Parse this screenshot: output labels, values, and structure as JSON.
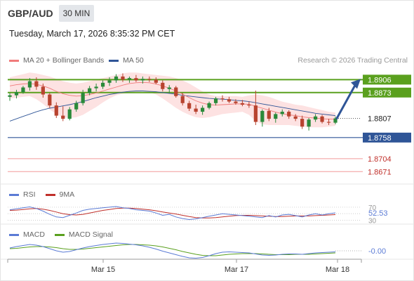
{
  "header": {
    "pair": "GBP/AUD",
    "timeframe": "30 MIN",
    "datetime": "Tuesday, March 17, 2026 8:35:32 PM CET"
  },
  "legend": {
    "ma20": "MA 20 + Bollinger Bands",
    "ma50": "MA 50",
    "credit": "Research © 2026 Trading Central"
  },
  "colors": {
    "up": "#2a8a3a",
    "down": "#b8432f",
    "bb_fill": "#fde2e2",
    "ma20": "#f07b7b",
    "ma50": "#2f5597",
    "green_level": "#5aa01e",
    "red_level": "#f29a9a",
    "blue_level": "#2f5597",
    "rsi": "#5b7bd5",
    "rsi_ma": "#c0302b",
    "macd": "#5b7bd5",
    "macd_signal": "#5aa01e"
  },
  "rsi_panel": {
    "label": "RSI",
    "ma_label": "9MA",
    "tick_70": "70",
    "tick_30": "30",
    "value": "52.53"
  },
  "macd_panel": {
    "label": "MACD",
    "signal_label": "MACD Signal",
    "value": "-0.00"
  },
  "x_axis": {
    "labels": [
      "Mar 15",
      "Mar 17",
      "Mar 18"
    ]
  },
  "chart_data": {
    "type": "candlestick",
    "y_range": [
      1.865,
      1.893
    ],
    "levels": [
      {
        "value": 1.8906,
        "label": "1.8906",
        "kind": "resistance",
        "style": "green"
      },
      {
        "value": 1.8873,
        "label": "1.8873",
        "kind": "resistance",
        "style": "green"
      },
      {
        "value": 1.8807,
        "label": "1.8807",
        "kind": "current_price",
        "style": "dotted"
      },
      {
        "value": 1.8758,
        "label": "1.8758",
        "kind": "pivot",
        "style": "blue"
      },
      {
        "value": 1.8704,
        "label": "1.8704",
        "kind": "support",
        "style": "red"
      },
      {
        "value": 1.8671,
        "label": "1.8671",
        "kind": "support",
        "style": "red"
      }
    ],
    "current_price": 1.8807,
    "forecast_arrow": {
      "from": 1.8807,
      "to": 1.8906,
      "direction": "up"
    },
    "candles": [
      [
        1.8862,
        1.8872,
        1.8852,
        1.8866
      ],
      [
        1.8866,
        1.888,
        1.8858,
        1.8874
      ],
      [
        1.8874,
        1.889,
        1.887,
        1.8886
      ],
      [
        1.8886,
        1.891,
        1.8878,
        1.8902
      ],
      [
        1.8902,
        1.8912,
        1.888,
        1.8888
      ],
      [
        1.8888,
        1.8896,
        1.886,
        1.8868
      ],
      [
        1.8868,
        1.8872,
        1.8834,
        1.884
      ],
      [
        1.884,
        1.8848,
        1.8808,
        1.8814
      ],
      [
        1.8814,
        1.8838,
        1.88,
        1.8806
      ],
      [
        1.8806,
        1.8836,
        1.8802,
        1.883
      ],
      [
        1.883,
        1.8852,
        1.8824,
        1.8846
      ],
      [
        1.8846,
        1.888,
        1.884,
        1.8872
      ],
      [
        1.8872,
        1.889,
        1.8866,
        1.8884
      ],
      [
        1.8884,
        1.8896,
        1.8876,
        1.8888
      ],
      [
        1.8888,
        1.8904,
        1.8882,
        1.8898
      ],
      [
        1.8898,
        1.8912,
        1.889,
        1.8904
      ],
      [
        1.8904,
        1.892,
        1.8898,
        1.8914
      ],
      [
        1.8914,
        1.8922,
        1.89,
        1.8906
      ],
      [
        1.8906,
        1.8914,
        1.8898,
        1.891
      ],
      [
        1.891,
        1.8918,
        1.89,
        1.8904
      ],
      [
        1.8904,
        1.8914,
        1.8896,
        1.8908
      ],
      [
        1.8908,
        1.8914,
        1.89,
        1.8906
      ],
      [
        1.8906,
        1.8912,
        1.8894,
        1.8898
      ],
      [
        1.8898,
        1.8904,
        1.8876,
        1.8882
      ],
      [
        1.8882,
        1.8892,
        1.8872,
        1.8886
      ],
      [
        1.8886,
        1.889,
        1.886,
        1.8864
      ],
      [
        1.8864,
        1.8872,
        1.884,
        1.8846
      ],
      [
        1.8846,
        1.8852,
        1.8826,
        1.8832
      ],
      [
        1.8832,
        1.8842,
        1.8818,
        1.8824
      ],
      [
        1.8824,
        1.884,
        1.8816,
        1.8834
      ],
      [
        1.8834,
        1.885,
        1.883,
        1.8846
      ],
      [
        1.8846,
        1.8862,
        1.884,
        1.8858
      ],
      [
        1.8858,
        1.8866,
        1.885,
        1.8856
      ],
      [
        1.8856,
        1.8862,
        1.8846,
        1.885
      ],
      [
        1.885,
        1.8856,
        1.8842,
        1.8846
      ],
      [
        1.8846,
        1.8854,
        1.8838,
        1.8842
      ],
      [
        1.8842,
        1.885,
        1.8834,
        1.884
      ],
      [
        1.884,
        1.8878,
        1.879,
        1.8798
      ],
      [
        1.8798,
        1.883,
        1.8786,
        1.8826
      ],
      [
        1.8826,
        1.8834,
        1.88,
        1.8806
      ],
      [
        1.8806,
        1.8822,
        1.8796,
        1.8818
      ],
      [
        1.8818,
        1.883,
        1.8812,
        1.8824
      ],
      [
        1.8824,
        1.8828,
        1.8806,
        1.8812
      ],
      [
        1.8812,
        1.8818,
        1.88,
        1.8806
      ],
      [
        1.8806,
        1.8814,
        1.878,
        1.8786
      ],
      [
        1.8786,
        1.8808,
        1.8776,
        1.8804
      ],
      [
        1.8804,
        1.8818,
        1.8798,
        1.8812
      ],
      [
        1.8812,
        1.8816,
        1.8794,
        1.8798
      ],
      [
        1.8798,
        1.8806,
        1.879,
        1.8796
      ],
      [
        1.8796,
        1.8812,
        1.8792,
        1.8807
      ]
    ],
    "ma20": [
      1.889,
      1.8893,
      1.8895,
      1.8896,
      1.8894,
      1.889,
      1.8884,
      1.8876,
      1.887,
      1.8866,
      1.8864,
      1.8865,
      1.8868,
      1.8872,
      1.8877,
      1.8882,
      1.8887,
      1.8892,
      1.8896,
      1.8898,
      1.8899,
      1.8898,
      1.8895,
      1.889,
      1.8884,
      1.8877,
      1.8869,
      1.886,
      1.8852,
      1.8846,
      1.8842,
      1.8841,
      1.8842,
      1.8843,
      1.8844,
      1.8844,
      1.8843,
      1.8838,
      1.8833,
      1.8828,
      1.8823,
      1.8819,
      1.8816,
      1.8814,
      1.8811,
      1.8809,
      1.8808,
      1.8806,
      1.8805,
      1.8805
    ],
    "ma50": [
      1.88,
      1.8806,
      1.8812,
      1.8818,
      1.8824,
      1.8829,
      1.8833,
      1.8836,
      1.8839,
      1.8842,
      1.8846,
      1.885,
      1.8855,
      1.886,
      1.8864,
      1.8868,
      1.8871,
      1.8874,
      1.8876,
      1.8877,
      1.8877,
      1.8876,
      1.8875,
      1.8873,
      1.8871,
      1.8869,
      1.8866,
      1.8864,
      1.8862,
      1.886,
      1.8858,
      1.8857,
      1.8856,
      1.8855,
      1.8853,
      1.8852,
      1.885,
      1.8847,
      1.8844,
      1.8841,
      1.8838,
      1.8835,
      1.8832,
      1.8829,
      1.8826,
      1.8823,
      1.882,
      1.8818,
      1.8816,
      1.8814
    ],
    "bb_upper": [
      1.8912,
      1.8916,
      1.892,
      1.8924,
      1.8922,
      1.8918,
      1.8914,
      1.8908,
      1.8902,
      1.8898,
      1.8896,
      1.8898,
      1.8902,
      1.8906,
      1.891,
      1.8914,
      1.8918,
      1.8922,
      1.8924,
      1.8924,
      1.8922,
      1.892,
      1.8918,
      1.8916,
      1.8914,
      1.891,
      1.8904,
      1.8896,
      1.8886,
      1.8876,
      1.8868,
      1.8864,
      1.8864,
      1.8864,
      1.8864,
      1.8862,
      1.8866,
      1.8868,
      1.8866,
      1.8862,
      1.8856,
      1.885,
      1.8846,
      1.8842,
      1.884,
      1.8836,
      1.8832,
      1.8828,
      1.8824,
      1.8822
    ],
    "bb_lower": [
      1.8858,
      1.886,
      1.8862,
      1.8864,
      1.8856,
      1.8844,
      1.883,
      1.8818,
      1.881,
      1.8808,
      1.881,
      1.8816,
      1.8826,
      1.8836,
      1.8848,
      1.8858,
      1.8866,
      1.887,
      1.8872,
      1.8874,
      1.8876,
      1.8874,
      1.8868,
      1.8858,
      1.8846,
      1.8834,
      1.8824,
      1.8816,
      1.881,
      1.8808,
      1.881,
      1.8814,
      1.8818,
      1.882,
      1.8822,
      1.8824,
      1.8816,
      1.88,
      1.8792,
      1.879,
      1.879,
      1.879,
      1.879,
      1.8788,
      1.8786,
      1.8784,
      1.8784,
      1.8784,
      1.8786,
      1.8788
    ],
    "rsi_range": [
      20,
      85
    ],
    "rsi": [
      62,
      65,
      68,
      71,
      66,
      58,
      48,
      40,
      38,
      45,
      52,
      60,
      64,
      66,
      68,
      70,
      72,
      68,
      66,
      62,
      60,
      58,
      52,
      45,
      48,
      40,
      35,
      32,
      34,
      38,
      42,
      46,
      50,
      48,
      46,
      44,
      42,
      40,
      38,
      44,
      40,
      46,
      48,
      44,
      40,
      46,
      50,
      46,
      50,
      52.53
    ],
    "rsi_ma": [
      60,
      61,
      63,
      65,
      66,
      64,
      60,
      55,
      50,
      47,
      46,
      48,
      52,
      56,
      60,
      63,
      66,
      67,
      67,
      66,
      64,
      62,
      59,
      55,
      52,
      49,
      45,
      41,
      38,
      37,
      37,
      38,
      40,
      42,
      44,
      45,
      45,
      44,
      43,
      42,
      41,
      41,
      42,
      43,
      43,
      43,
      44,
      45,
      46,
      47
    ],
    "macd_range": [
      -0.003,
      0.003
    ],
    "macd": [
      0.0008,
      0.0012,
      0.0015,
      0.0018,
      0.0016,
      0.0012,
      0.0006,
      0.0,
      -0.0004,
      -0.0002,
      0.0003,
      0.0008,
      0.0012,
      0.0015,
      0.0018,
      0.002,
      0.0022,
      0.0021,
      0.0019,
      0.0017,
      0.0014,
      0.001,
      0.0005,
      -0.0001,
      -0.0006,
      -0.0011,
      -0.0016,
      -0.002,
      -0.0021,
      -0.0019,
      -0.0014,
      -0.0008,
      -0.0004,
      -0.0003,
      -0.0004,
      -0.0005,
      -0.0006,
      -0.0009,
      -0.0012,
      -0.0013,
      -0.0012,
      -0.001,
      -0.0009,
      -0.0009,
      -0.001,
      -0.0008,
      -0.0006,
      -0.0005,
      -0.0004,
      -0.0003
    ],
    "macd_signal": [
      0.0006,
      0.0007,
      0.0009,
      0.0011,
      0.0012,
      0.0012,
      0.0011,
      0.0009,
      0.0006,
      0.0004,
      0.0004,
      0.0005,
      0.0007,
      0.0009,
      0.0011,
      0.0013,
      0.0015,
      0.0017,
      0.0018,
      0.0018,
      0.0017,
      0.0016,
      0.0014,
      0.0011,
      0.0007,
      0.0003,
      -0.0002,
      -0.0006,
      -0.001,
      -0.0013,
      -0.0014,
      -0.0014,
      -0.0012,
      -0.001,
      -0.0009,
      -0.0008,
      -0.0008,
      -0.0008,
      -0.0009,
      -0.001,
      -0.0011,
      -0.0011,
      -0.0011,
      -0.001,
      -0.001,
      -0.001,
      -0.0009,
      -0.0008,
      -0.0007,
      -0.0006
    ]
  }
}
